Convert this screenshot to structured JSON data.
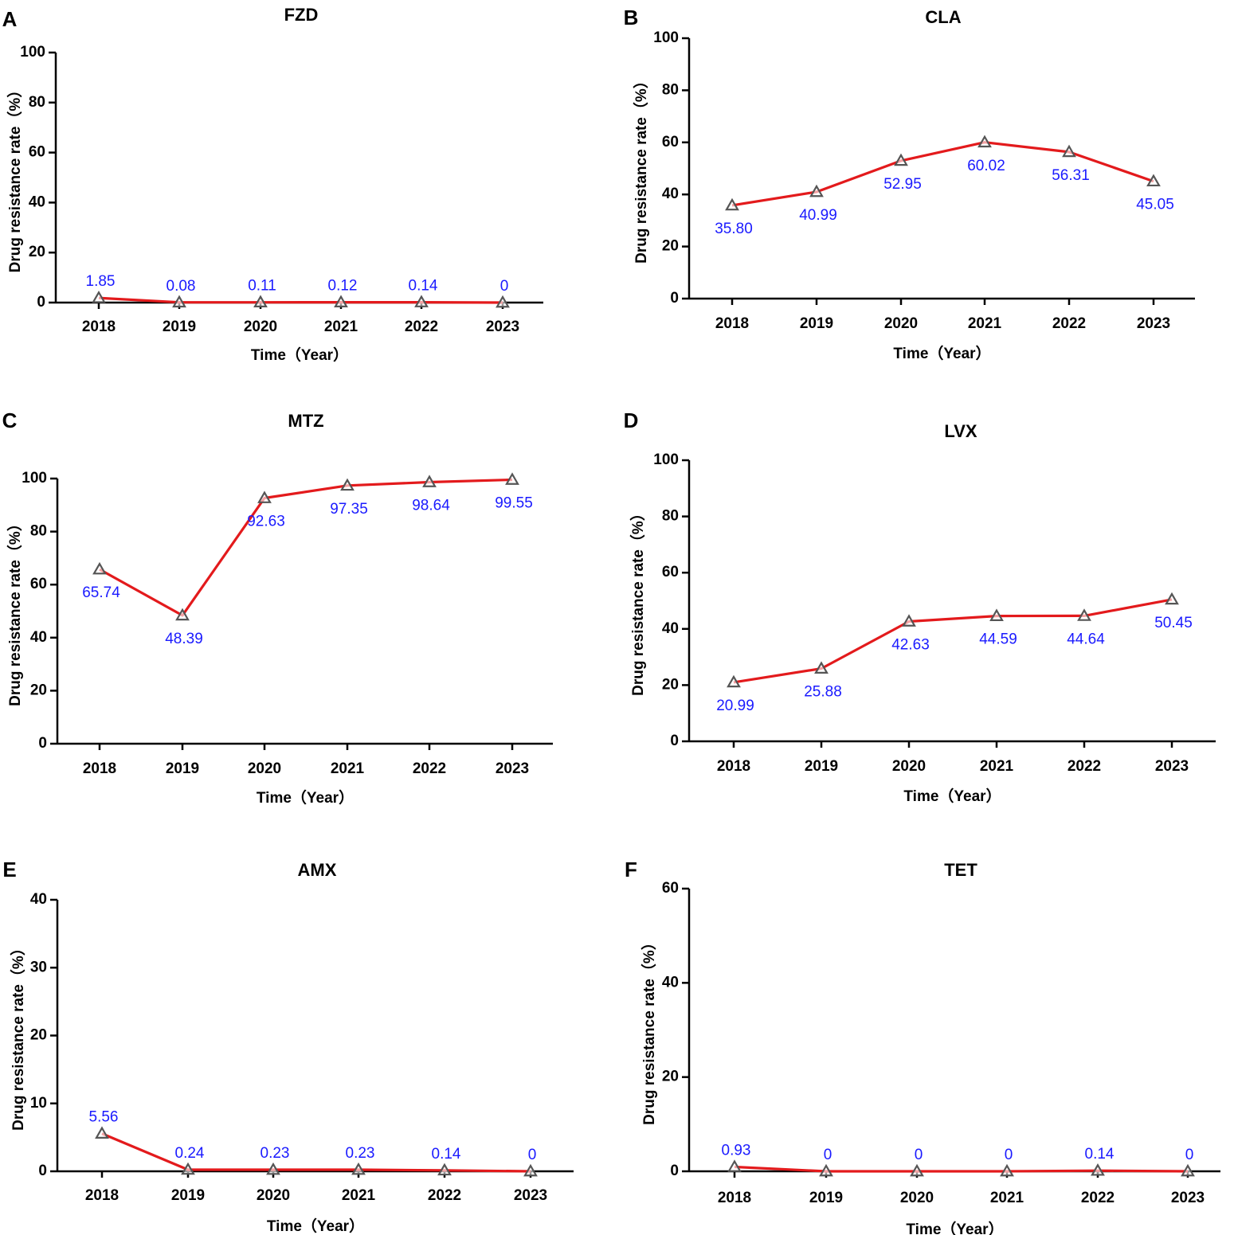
{
  "colors": {
    "line": "#e31a1c",
    "data_label": "#1a1aff",
    "marker_stroke": "#555555",
    "axis": "#000000"
  },
  "marker_icon": "triangle-marker-icon",
  "chart_data": [
    {
      "panel": "A",
      "type": "line",
      "title": "FZD",
      "xlabel": "Time（Year）",
      "ylabel": "Drug resistance rate（%）",
      "categories": [
        "2018",
        "2019",
        "2020",
        "2021",
        "2022",
        "2023"
      ],
      "values": [
        1.85,
        0.08,
        0.11,
        0.12,
        0.14,
        0
      ],
      "value_labels": [
        "1.85",
        "0.08",
        "0.11",
        "0.12",
        "0.14",
        "0"
      ],
      "label_position": "above",
      "ylim": [
        0,
        100
      ],
      "yticks": [
        0,
        20,
        40,
        60,
        80,
        100
      ],
      "grid": false
    },
    {
      "panel": "B",
      "type": "line",
      "title": "CLA",
      "xlabel": "Time（Year）",
      "ylabel": "Drug resistance rate（%）",
      "categories": [
        "2018",
        "2019",
        "2020",
        "2021",
        "2022",
        "2023"
      ],
      "values": [
        35.8,
        40.99,
        52.95,
        60.02,
        56.31,
        45.05
      ],
      "value_labels": [
        "35.80",
        "40.99",
        "52.95",
        "60.02",
        "56.31",
        "45.05"
      ],
      "label_position": "below",
      "ylim": [
        0,
        100
      ],
      "yticks": [
        0,
        20,
        40,
        60,
        80,
        100
      ],
      "grid": false
    },
    {
      "panel": "C",
      "type": "line",
      "title": "MTZ",
      "xlabel": "Time（Year）",
      "ylabel": "Drug resistance rate（%）",
      "categories": [
        "2018",
        "2019",
        "2020",
        "2021",
        "2022",
        "2023"
      ],
      "values": [
        65.74,
        48.39,
        92.63,
        97.35,
        98.64,
        99.55
      ],
      "value_labels": [
        "65.74",
        "48.39",
        "92.63",
        "97.35",
        "98.64",
        "99.55"
      ],
      "label_position": "below",
      "ylim": [
        0,
        100
      ],
      "yticks": [
        0,
        20,
        40,
        60,
        80,
        100
      ],
      "grid": false
    },
    {
      "panel": "D",
      "type": "line",
      "title": "LVX",
      "xlabel": "Time（Year）",
      "ylabel": "Drug resistance rate（%）",
      "categories": [
        "2018",
        "2019",
        "2020",
        "2021",
        "2022",
        "2023"
      ],
      "values": [
        20.99,
        25.88,
        42.63,
        44.59,
        44.64,
        50.45
      ],
      "value_labels": [
        "20.99",
        "25.88",
        "42.63",
        "44.59",
        "44.64",
        "50.45"
      ],
      "label_position": "below",
      "ylim": [
        0,
        100
      ],
      "yticks": [
        0,
        20,
        40,
        60,
        80,
        100
      ],
      "grid": false
    },
    {
      "panel": "E",
      "type": "line",
      "title": "AMX",
      "xlabel": "Time（Year）",
      "ylabel": "Drug resistance rate（%）",
      "categories": [
        "2018",
        "2019",
        "2020",
        "2021",
        "2022",
        "2023"
      ],
      "values": [
        5.56,
        0.24,
        0.23,
        0.23,
        0.14,
        0
      ],
      "value_labels": [
        "5.56",
        "0.24",
        "0.23",
        "0.23",
        "0.14",
        "0"
      ],
      "label_position": "above",
      "ylim": [
        0,
        40
      ],
      "yticks": [
        0,
        10,
        20,
        30,
        40
      ],
      "grid": false
    },
    {
      "panel": "F",
      "type": "line",
      "title": "TET",
      "xlabel": "Time（Year）",
      "ylabel": "Drug resistance rate（%）",
      "categories": [
        "2018",
        "2019",
        "2020",
        "2021",
        "2022",
        "2023"
      ],
      "values": [
        0.93,
        0,
        0,
        0,
        0.14,
        0
      ],
      "value_labels": [
        "0.93",
        "0",
        "0",
        "0",
        "0.14",
        "0"
      ],
      "label_position": "above",
      "ylim": [
        0,
        60
      ],
      "yticks": [
        0,
        20,
        40,
        60
      ],
      "grid": false
    }
  ]
}
